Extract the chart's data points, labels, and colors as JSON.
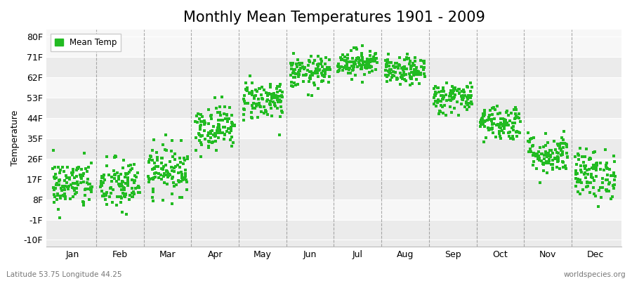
{
  "title": "Monthly Mean Temperatures 1901 - 2009",
  "ylabel": "Temperature",
  "yticks": [
    -10,
    -1,
    8,
    17,
    26,
    35,
    44,
    53,
    62,
    71,
    80
  ],
  "ytick_labels": [
    "-10F",
    "-1F",
    "8F",
    "17F",
    "26F",
    "35F",
    "44F",
    "53F",
    "62F",
    "71F",
    "80F"
  ],
  "ylim": [
    -13,
    83
  ],
  "months": [
    "Jan",
    "Feb",
    "Mar",
    "Apr",
    "May",
    "Jun",
    "Jul",
    "Aug",
    "Sep",
    "Oct",
    "Nov",
    "Dec"
  ],
  "dot_color": "#22bb22",
  "band_colors": [
    "#ebebeb",
    "#f7f7f7"
  ],
  "legend_label": "Mean Temp",
  "footnote_left": "Latitude 53.75 Longitude 44.25",
  "footnote_right": "worldspecies.org",
  "title_fontsize": 15,
  "label_fontsize": 9,
  "monthly_means_f": [
    14.5,
    14.0,
    21.0,
    40.0,
    52.0,
    64.0,
    68.5,
    64.5,
    53.0,
    42.0,
    28.0,
    19.0
  ],
  "monthly_stds_f": [
    5.5,
    6.0,
    5.5,
    5.0,
    4.5,
    3.5,
    3.0,
    3.0,
    3.5,
    4.0,
    4.5,
    5.5
  ]
}
